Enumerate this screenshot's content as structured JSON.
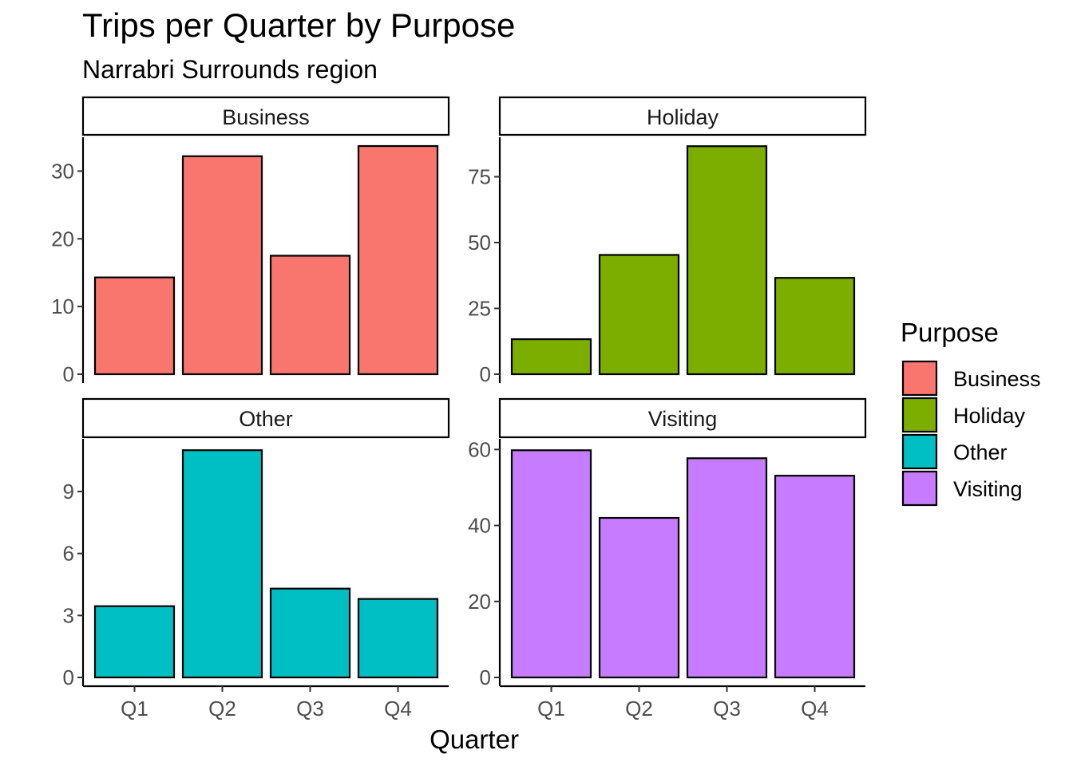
{
  "chart_data": {
    "type": "bar",
    "title": "Trips per Quarter by Purpose",
    "subtitle": "Narrabri Surrounds region",
    "xlabel": "Quarter",
    "ylabel": "",
    "categories": [
      "Q1",
      "Q2",
      "Q3",
      "Q4"
    ],
    "grid": false,
    "legend": {
      "title": "Purpose",
      "position": "right",
      "entries": [
        {
          "name": "Business",
          "color": "#F8766D"
        },
        {
          "name": "Holiday",
          "color": "#7CAE00"
        },
        {
          "name": "Other",
          "color": "#00BFC4"
        },
        {
          "name": "Visiting",
          "color": "#C77CFF"
        }
      ]
    },
    "panels": [
      {
        "name": "Business",
        "color": "#F8766D",
        "values": [
          14.3,
          32.2,
          17.5,
          33.7
        ],
        "ylim": [
          0,
          35
        ],
        "yticks": [
          0,
          10,
          20,
          30
        ]
      },
      {
        "name": "Holiday",
        "color": "#7CAE00",
        "values": [
          13.3,
          45.3,
          86.6,
          36.6
        ],
        "ylim": [
          0,
          90
        ],
        "yticks": [
          0,
          25,
          50,
          75
        ]
      },
      {
        "name": "Other",
        "color": "#00BFC4",
        "values": [
          3.45,
          11.0,
          4.3,
          3.8
        ],
        "ylim": [
          0,
          11.55
        ],
        "yticks": [
          0,
          3,
          6,
          9
        ]
      },
      {
        "name": "Visiting",
        "color": "#C77CFF",
        "values": [
          59.8,
          42.0,
          57.7,
          53.1
        ],
        "ylim": [
          0,
          62.8
        ],
        "yticks": [
          0,
          20,
          40,
          60
        ]
      }
    ]
  }
}
